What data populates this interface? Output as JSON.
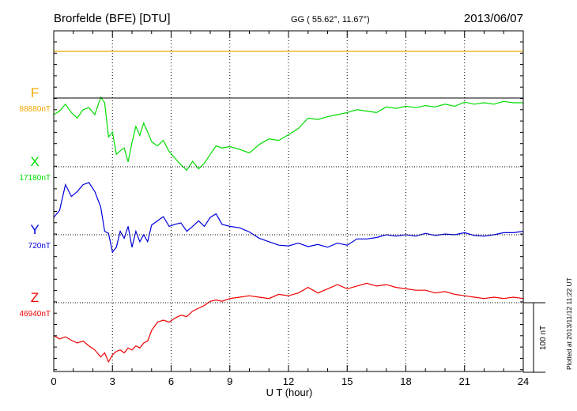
{
  "header": {
    "station": "Brorfelde (BFE)  [DTU]",
    "coords": "GG ( 55.62°,  11.67°)",
    "date": "2013/06/07"
  },
  "plotted_note": "Plotted at 2013/11/12 11:22 UT",
  "scale_label": "100 nT",
  "chart_data": {
    "type": "line",
    "title": "Brorfelde (BFE)  [DTU]",
    "xlabel": "U T (hour)",
    "ylabel": "",
    "xlim": [
      0,
      24
    ],
    "x_ticks": [
      "0",
      "3",
      "6",
      "9",
      "12",
      "15",
      "18",
      "21",
      "24"
    ],
    "grid": true,
    "scale_bar_nT": 100,
    "baseline_unit": "nT",
    "series": [
      {
        "name": "F",
        "baseline_label": "88880nT",
        "color": "#f0a800",
        "x": [
          0,
          24
        ],
        "y": [
          67,
          67
        ]
      },
      {
        "name": "X",
        "baseline_label": "17180nT",
        "color": "#00dd00",
        "x": [
          0,
          0.3,
          0.6,
          0.9,
          1.2,
          1.5,
          1.8,
          2.1,
          2.4,
          2.6,
          2.8,
          3.0,
          3.2,
          3.4,
          3.6,
          3.8,
          4.0,
          4.2,
          4.4,
          4.6,
          4.8,
          5.0,
          5.3,
          5.6,
          5.9,
          6.2,
          6.5,
          6.8,
          7.1,
          7.4,
          7.7,
          8.0,
          8.3,
          8.6,
          9.0,
          9.5,
          10.0,
          10.5,
          11.0,
          11.5,
          12.0,
          12.5,
          13.0,
          13.5,
          14.0,
          14.5,
          15.0,
          15.5,
          16.0,
          16.5,
          17.0,
          17.5,
          18.0,
          18.5,
          19.0,
          19.5,
          20.0,
          20.5,
          21.0,
          21.5,
          22.0,
          22.5,
          23.0,
          23.5,
          24.0
        ],
        "y": [
          75,
          80,
          90,
          78,
          70,
          82,
          85,
          75,
          100,
          92,
          43,
          50,
          18,
          23,
          27,
          7,
          35,
          58,
          45,
          63,
          50,
          36,
          30,
          38,
          22,
          12,
          3,
          -5,
          8,
          -3,
          5,
          18,
          30,
          27,
          29,
          25,
          20,
          32,
          40,
          38,
          46,
          55,
          70,
          68,
          72,
          75,
          78,
          82,
          80,
          78,
          86,
          84,
          87,
          85,
          88,
          86,
          90,
          87,
          93,
          90,
          92,
          90,
          94,
          92,
          92
        ]
      },
      {
        "name": "Y",
        "baseline_label": "720nT",
        "color": "#0000dd",
        "x": [
          0,
          0.3,
          0.6,
          0.9,
          1.2,
          1.5,
          1.8,
          2.1,
          2.4,
          2.6,
          2.8,
          3.0,
          3.2,
          3.4,
          3.6,
          3.8,
          4.0,
          4.2,
          4.4,
          4.6,
          4.8,
          5.0,
          5.3,
          5.6,
          5.9,
          6.2,
          6.5,
          6.8,
          7.1,
          7.4,
          7.7,
          8.0,
          8.3,
          8.6,
          9.0,
          9.5,
          10.0,
          10.5,
          11.0,
          11.5,
          12.0,
          12.5,
          13.0,
          13.5,
          14.0,
          14.5,
          15.0,
          15.5,
          16.0,
          16.5,
          17.0,
          17.5,
          18.0,
          18.5,
          19.0,
          19.5,
          20.0,
          20.5,
          21.0,
          21.5,
          22.0,
          22.5,
          23.0,
          23.5,
          24.0
        ],
        "y": [
          25,
          35,
          72,
          55,
          62,
          72,
          75,
          62,
          40,
          5,
          2,
          -25,
          -18,
          5,
          -5,
          12,
          -18,
          5,
          -10,
          0,
          -10,
          14,
          20,
          26,
          12,
          15,
          17,
          5,
          12,
          20,
          12,
          25,
          30,
          15,
          12,
          10,
          4,
          -5,
          -10,
          -15,
          -16,
          -12,
          -17,
          -14,
          -18,
          -12,
          -15,
          -6,
          -6,
          -4,
          0,
          -2,
          0,
          -2,
          2,
          -1,
          1,
          0,
          3,
          -1,
          -2,
          0,
          3,
          3,
          5
        ]
      },
      {
        "name": "Z",
        "baseline_label": "46940nT",
        "color": "#ee0000",
        "x": [
          0,
          0.3,
          0.6,
          0.9,
          1.2,
          1.5,
          1.8,
          2.1,
          2.4,
          2.6,
          2.8,
          3.0,
          3.2,
          3.4,
          3.6,
          3.8,
          4.0,
          4.2,
          4.4,
          4.6,
          4.8,
          5.0,
          5.3,
          5.6,
          5.9,
          6.2,
          6.5,
          6.8,
          7.1,
          7.4,
          7.7,
          8.0,
          8.3,
          8.6,
          9.0,
          9.5,
          10.0,
          10.5,
          11.0,
          11.5,
          12.0,
          12.5,
          13.0,
          13.5,
          14.0,
          14.5,
          15.0,
          15.5,
          16.0,
          16.5,
          17.0,
          17.5,
          18.0,
          18.5,
          19.0,
          19.5,
          20.0,
          20.5,
          21.0,
          21.5,
          22.0,
          22.5,
          23.0,
          23.5,
          24.0
        ],
        "y": [
          -47,
          -52,
          -49,
          -54,
          -58,
          -55,
          -62,
          -68,
          -78,
          -72,
          -85,
          -75,
          -70,
          -68,
          -72,
          -65,
          -68,
          -62,
          -65,
          -58,
          -55,
          -40,
          -28,
          -25,
          -28,
          -22,
          -18,
          -20,
          -12,
          -8,
          -4,
          2,
          4,
          2,
          6,
          8,
          10,
          8,
          6,
          12,
          10,
          14,
          22,
          14,
          20,
          26,
          20,
          24,
          28,
          24,
          26,
          22,
          20,
          18,
          18,
          14,
          16,
          12,
          10,
          8,
          6,
          8,
          6,
          8,
          6
        ]
      }
    ]
  }
}
